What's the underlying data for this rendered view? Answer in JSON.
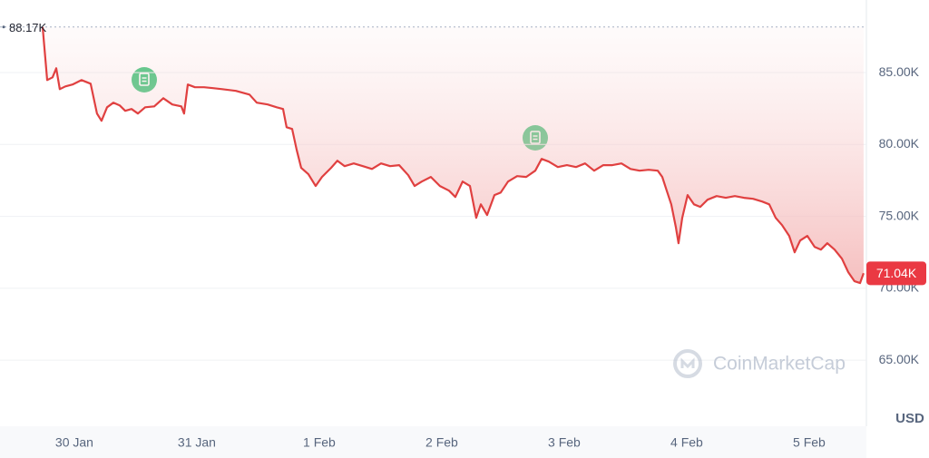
{
  "chart_data": {
    "type": "line",
    "color": "#e04040",
    "grid": true,
    "watermark": "CoinMarketCap",
    "y_label": "USD",
    "max_label": {
      "value": 88170,
      "label": "88.17K"
    },
    "last_label": {
      "value": 71040,
      "label": "71.04K"
    },
    "xlim": [
      -0.607,
      6.467
    ],
    "ylim": [
      60400,
      90050
    ],
    "xticks": [
      {
        "value": 0,
        "label": "30 Jan"
      },
      {
        "value": 1,
        "label": "31 Jan"
      },
      {
        "value": 2,
        "label": "1 Feb"
      },
      {
        "value": 3,
        "label": "2 Feb"
      },
      {
        "value": 4,
        "label": "3 Feb"
      },
      {
        "value": 5,
        "label": "4 Feb"
      },
      {
        "value": 6,
        "label": "5 Feb"
      }
    ],
    "yticks": [
      {
        "value": 65000,
        "label": "65.00K"
      },
      {
        "value": 70000,
        "label": "70.00K"
      },
      {
        "value": 75000,
        "label": "75.00K"
      },
      {
        "value": 80000,
        "label": "80.00K"
      },
      {
        "value": 85000,
        "label": "85.00K"
      }
    ],
    "x": [
      -0.259,
      -0.222,
      -0.178,
      -0.148,
      -0.119,
      -0.074,
      -0.015,
      0.059,
      0.133,
      0.185,
      0.222,
      0.267,
      0.319,
      0.37,
      0.415,
      0.467,
      0.519,
      0.578,
      0.652,
      0.726,
      0.8,
      0.874,
      0.896,
      0.926,
      0.985,
      1.059,
      1.133,
      1.207,
      1.319,
      1.43,
      1.489,
      1.578,
      1.652,
      1.704,
      1.733,
      1.778,
      1.815,
      1.852,
      1.911,
      1.97,
      2.022,
      2.096,
      2.148,
      2.207,
      2.281,
      2.356,
      2.43,
      2.504,
      2.578,
      2.652,
      2.726,
      2.778,
      2.837,
      2.911,
      2.985,
      3.059,
      3.111,
      3.17,
      3.23,
      3.281,
      3.319,
      3.37,
      3.43,
      3.481,
      3.541,
      3.615,
      3.689,
      3.763,
      3.815,
      3.874,
      3.948,
      4.022,
      4.096,
      4.17,
      4.244,
      4.319,
      4.393,
      4.467,
      4.541,
      4.615,
      4.689,
      4.763,
      4.8,
      4.837,
      4.874,
      4.911,
      4.933,
      4.963,
      5.007,
      5.059,
      5.111,
      5.17,
      5.244,
      5.319,
      5.393,
      5.467,
      5.541,
      5.615,
      5.674,
      5.726,
      5.778,
      5.837,
      5.881,
      5.926,
      5.985,
      6.044,
      6.096,
      6.148,
      6.207,
      6.267,
      6.319,
      6.37,
      6.415,
      6.444
    ],
    "values": [
      88170,
      84480,
      84670,
      85300,
      83850,
      84040,
      84170,
      84480,
      84230,
      82150,
      81650,
      82590,
      82910,
      82720,
      82340,
      82470,
      82150,
      82590,
      82650,
      83220,
      82780,
      82650,
      82150,
      84170,
      83980,
      83980,
      83920,
      83850,
      83730,
      83470,
      82910,
      82780,
      82590,
      82470,
      81200,
      81080,
      79630,
      78370,
      77930,
      77110,
      77740,
      78370,
      78870,
      78490,
      78680,
      78490,
      78300,
      78680,
      78490,
      78560,
      77860,
      77110,
      77420,
      77740,
      77110,
      76790,
      76350,
      77420,
      77110,
      74900,
      75840,
      75090,
      76480,
      76660,
      77420,
      77800,
      77740,
      78180,
      79000,
      78810,
      78430,
      78560,
      78430,
      78680,
      78180,
      78560,
      78560,
      78680,
      78300,
      78180,
      78240,
      78180,
      77740,
      76790,
      75840,
      74270,
      73130,
      74900,
      76480,
      75840,
      75660,
      76160,
      76410,
      76290,
      76410,
      76290,
      76220,
      76030,
      75840,
      74900,
      74390,
      73640,
      72500,
      73320,
      73640,
      72880,
      72690,
      73130,
      72690,
      72060,
      71120,
      70490,
      70360,
      71040
    ]
  }
}
